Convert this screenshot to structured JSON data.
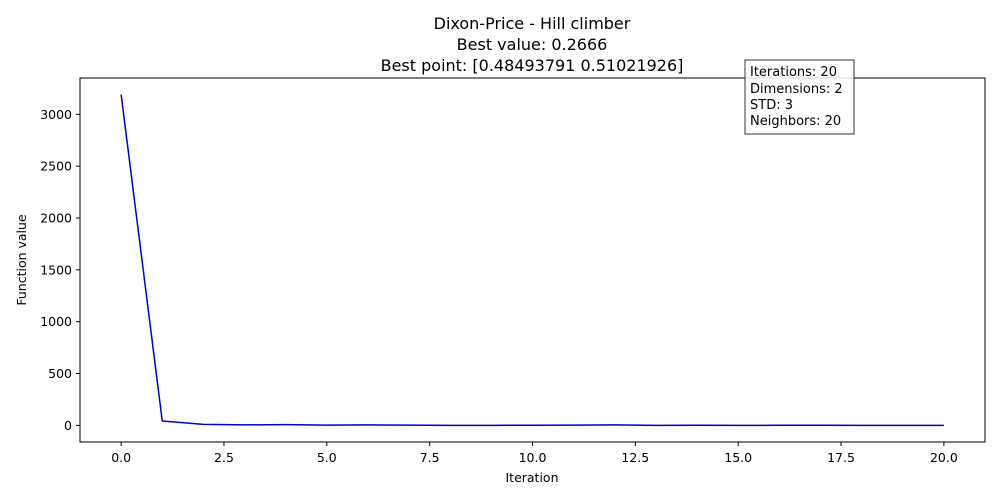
{
  "chart_data": {
    "type": "line",
    "title_lines": [
      "Dixon-Price - Hill climber",
      "Best value: 0.2666",
      "Best point: [0.48493791 0.51021926]"
    ],
    "xlabel": "Iteration",
    "ylabel": "Function value",
    "xlim": [
      -1,
      21
    ],
    "ylim": [
      -160,
      3350
    ],
    "x_ticks": [
      0.0,
      2.5,
      5.0,
      7.5,
      10.0,
      12.5,
      15.0,
      17.5,
      20.0
    ],
    "x_tick_labels": [
      "0.0",
      "2.5",
      "5.0",
      "7.5",
      "10.0",
      "12.5",
      "15.0",
      "17.5",
      "20.0"
    ],
    "y_ticks": [
      0,
      500,
      1000,
      1500,
      2000,
      2500,
      3000
    ],
    "y_tick_labels": [
      "0",
      "500",
      "1000",
      "1500",
      "2000",
      "2500",
      "3000"
    ],
    "grid": false,
    "series": [
      {
        "color": "#0000cd",
        "x": [
          0,
          1,
          2,
          3,
          4,
          5,
          6,
          7,
          8,
          9,
          10,
          11,
          12,
          13,
          14,
          15,
          16,
          17,
          18,
          19,
          20
        ],
        "values": [
          3190,
          42,
          10,
          5,
          8,
          3,
          5,
          3,
          0.5,
          0.4,
          2,
          3,
          5,
          0.4,
          2,
          0.5,
          1,
          2,
          0.5,
          0.3,
          0.2666
        ]
      }
    ],
    "info_box": {
      "lines": [
        "Iterations: 20",
        "Dimensions: 2",
        "STD: 3",
        "Neighbors: 20"
      ],
      "placement": "top-right"
    }
  }
}
